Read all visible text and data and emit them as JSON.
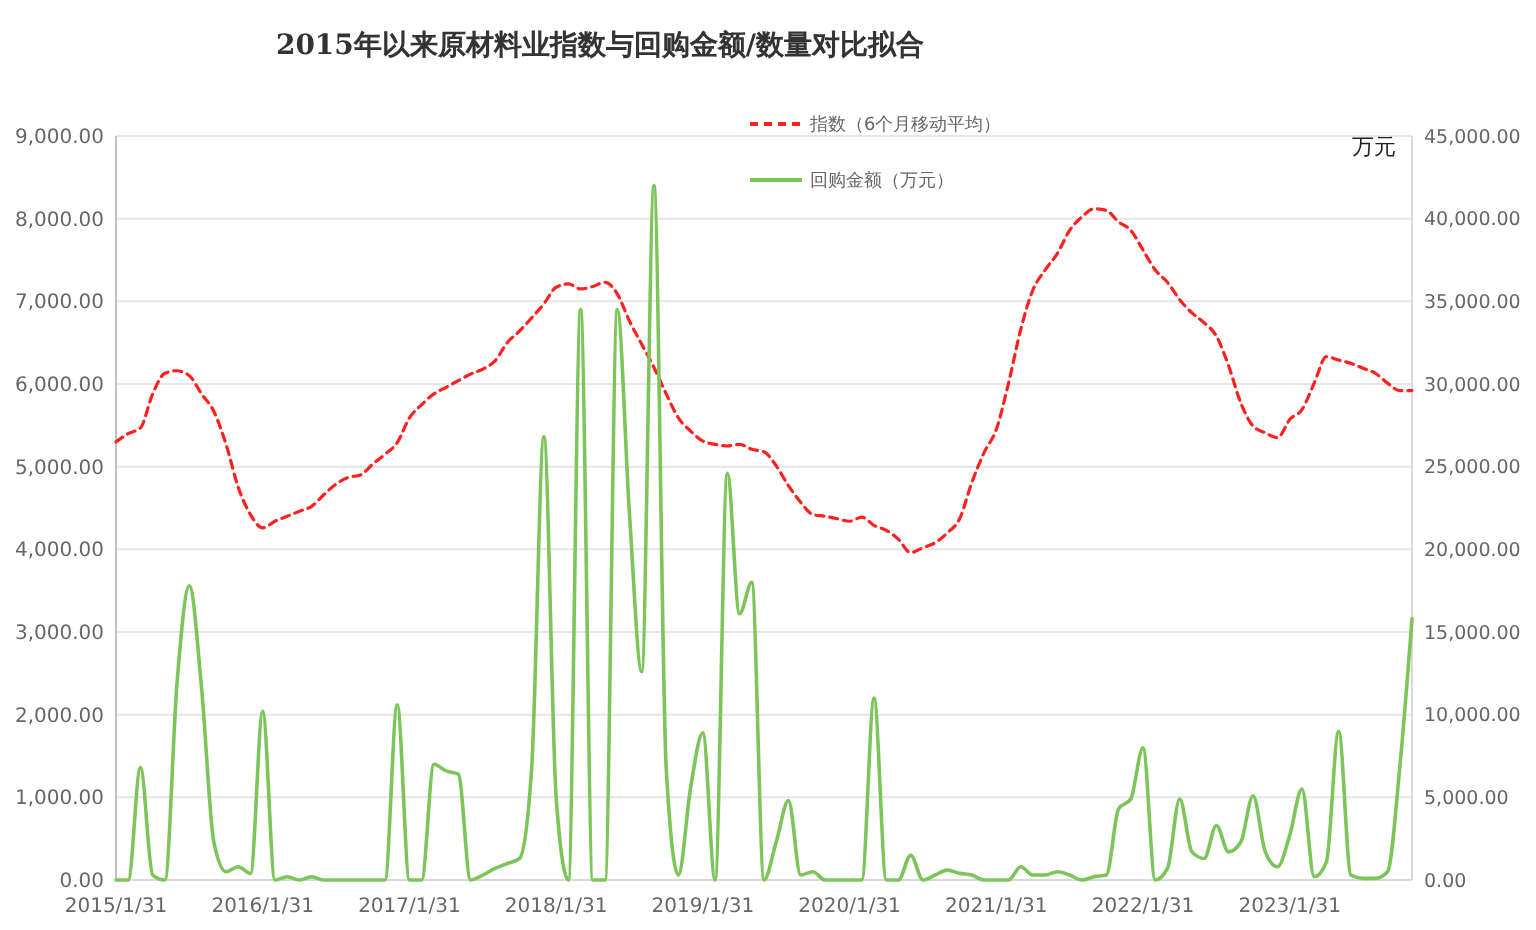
{
  "chart_data": {
    "type": "line",
    "title": "2015年以来原材料业指数与回购金额/数量对比拟合",
    "y2label": "万元",
    "categories": [
      "2015/1/31",
      null,
      null,
      null,
      null,
      null,
      null,
      null,
      null,
      null,
      null,
      null,
      "2016/1/31",
      null,
      null,
      null,
      null,
      null,
      null,
      null,
      null,
      null,
      null,
      null,
      "2017/1/31",
      null,
      null,
      null,
      null,
      null,
      null,
      null,
      null,
      null,
      null,
      null,
      "2018/1/31",
      null,
      null,
      null,
      null,
      null,
      null,
      null,
      null,
      null,
      null,
      null,
      "2019/1/31",
      null,
      null,
      null,
      null,
      null,
      null,
      null,
      null,
      null,
      null,
      null,
      "2020/1/31",
      null,
      null,
      null,
      null,
      null,
      null,
      null,
      null,
      null,
      null,
      null,
      "2021/1/31",
      null,
      null,
      null,
      null,
      null,
      null,
      null,
      null,
      null,
      null,
      null,
      "2022/1/31",
      null,
      null,
      null,
      null,
      null,
      null,
      null,
      null,
      null,
      null,
      null,
      "2023/1/31",
      null,
      null,
      null,
      null,
      null,
      null,
      null,
      null,
      null,
      null
    ],
    "series": [
      {
        "name": "指数（6个月移动平均）",
        "color": "#ff2020",
        "line_style": "dashed",
        "values": [
          5300,
          5400,
          5470,
          5880,
          6130,
          6160,
          6100,
          5880,
          5670,
          5270,
          4750,
          4420,
          4260,
          4340,
          4400,
          4460,
          4520,
          4660,
          4790,
          4870,
          4900,
          5030,
          5150,
          5290,
          5590,
          5750,
          5880,
          5960,
          6040,
          6120,
          6180,
          6280,
          6500,
          6640,
          6800,
          6970,
          7170,
          7210,
          7150,
          7180,
          7230,
          7090,
          6760,
          6480,
          6200,
          5880,
          5590,
          5430,
          5310,
          5270,
          5250,
          5270,
          5210,
          5180,
          5010,
          4770,
          4570,
          4420,
          4400,
          4370,
          4340,
          4390,
          4290,
          4230,
          4120,
          3960,
          4020,
          4080,
          4200,
          4370,
          4810,
          5170,
          5450,
          6010,
          6660,
          7140,
          7380,
          7580,
          7860,
          8020,
          8120,
          8100,
          7960,
          7860,
          7620,
          7380,
          7230,
          7020,
          6860,
          6740,
          6580,
          6220,
          5770,
          5490,
          5410,
          5350,
          5570,
          5690,
          6010,
          6330,
          6290,
          6250,
          6190,
          6130,
          6010,
          5920,
          5920
        ]
      },
      {
        "name": "回购金额（万元）",
        "color": "#7cc55a",
        "line_style": "solid",
        "axis": "y2",
        "values": [
          0,
          0,
          6800,
          300,
          0,
          12000,
          17800,
          11600,
          2300,
          500,
          800,
          400,
          10200,
          0,
          200,
          0,
          200,
          0,
          0,
          0,
          0,
          0,
          0,
          10600,
          0,
          0,
          7000,
          6600,
          6400,
          0,
          300,
          700,
          1000,
          1300,
          6800,
          26800,
          5000,
          0,
          34500,
          0,
          0,
          34500,
          22100,
          12600,
          42000,
          6800,
          300,
          5600,
          8900,
          0,
          24600,
          16100,
          18000,
          0,
          2300,
          4800,
          300,
          500,
          0,
          0,
          0,
          0,
          11000,
          0,
          0,
          1500,
          0,
          300,
          600,
          400,
          300,
          0,
          0,
          0,
          800,
          300,
          300,
          500,
          300,
          0,
          200,
          300,
          4300,
          4900,
          8000,
          0,
          700,
          4900,
          1700,
          1300,
          3300,
          1700,
          2300,
          5100,
          1700,
          800,
          2700,
          5500,
          200,
          1100,
          9000,
          300,
          100,
          100,
          500,
          6800,
          15800
        ]
      }
    ],
    "ylim": [
      0,
      9000
    ],
    "yticks": [
      {
        "value": 0,
        "label": "0.00"
      },
      {
        "value": 1000,
        "label": "1,000.00"
      },
      {
        "value": 2000,
        "label": "2,000.00"
      },
      {
        "value": 3000,
        "label": "3,000.00"
      },
      {
        "value": 4000,
        "label": "4,000.00"
      },
      {
        "value": 5000,
        "label": "5,000.00"
      },
      {
        "value": 6000,
        "label": "6,000.00"
      },
      {
        "value": 7000,
        "label": "7,000.00"
      },
      {
        "value": 8000,
        "label": "8,000.00"
      },
      {
        "value": 9000,
        "label": "9,000.00"
      }
    ],
    "y2lim": [
      0,
      45000
    ],
    "y2ticks": [
      {
        "value": 0,
        "label": "0.00"
      },
      {
        "value": 5000,
        "label": "5,000.00"
      },
      {
        "value": 10000,
        "label": "10,000.00"
      },
      {
        "value": 15000,
        "label": "15,000.00"
      },
      {
        "value": 20000,
        "label": "20,000.00"
      },
      {
        "value": 25000,
        "label": "25,000.00"
      },
      {
        "value": 30000,
        "label": "30,000.00"
      },
      {
        "value": 35000,
        "label": "35,000.00"
      },
      {
        "value": 40000,
        "label": "40,000.00"
      },
      {
        "value": 45000,
        "label": "45,000.00"
      }
    ],
    "grid": "y",
    "legend": "top"
  }
}
